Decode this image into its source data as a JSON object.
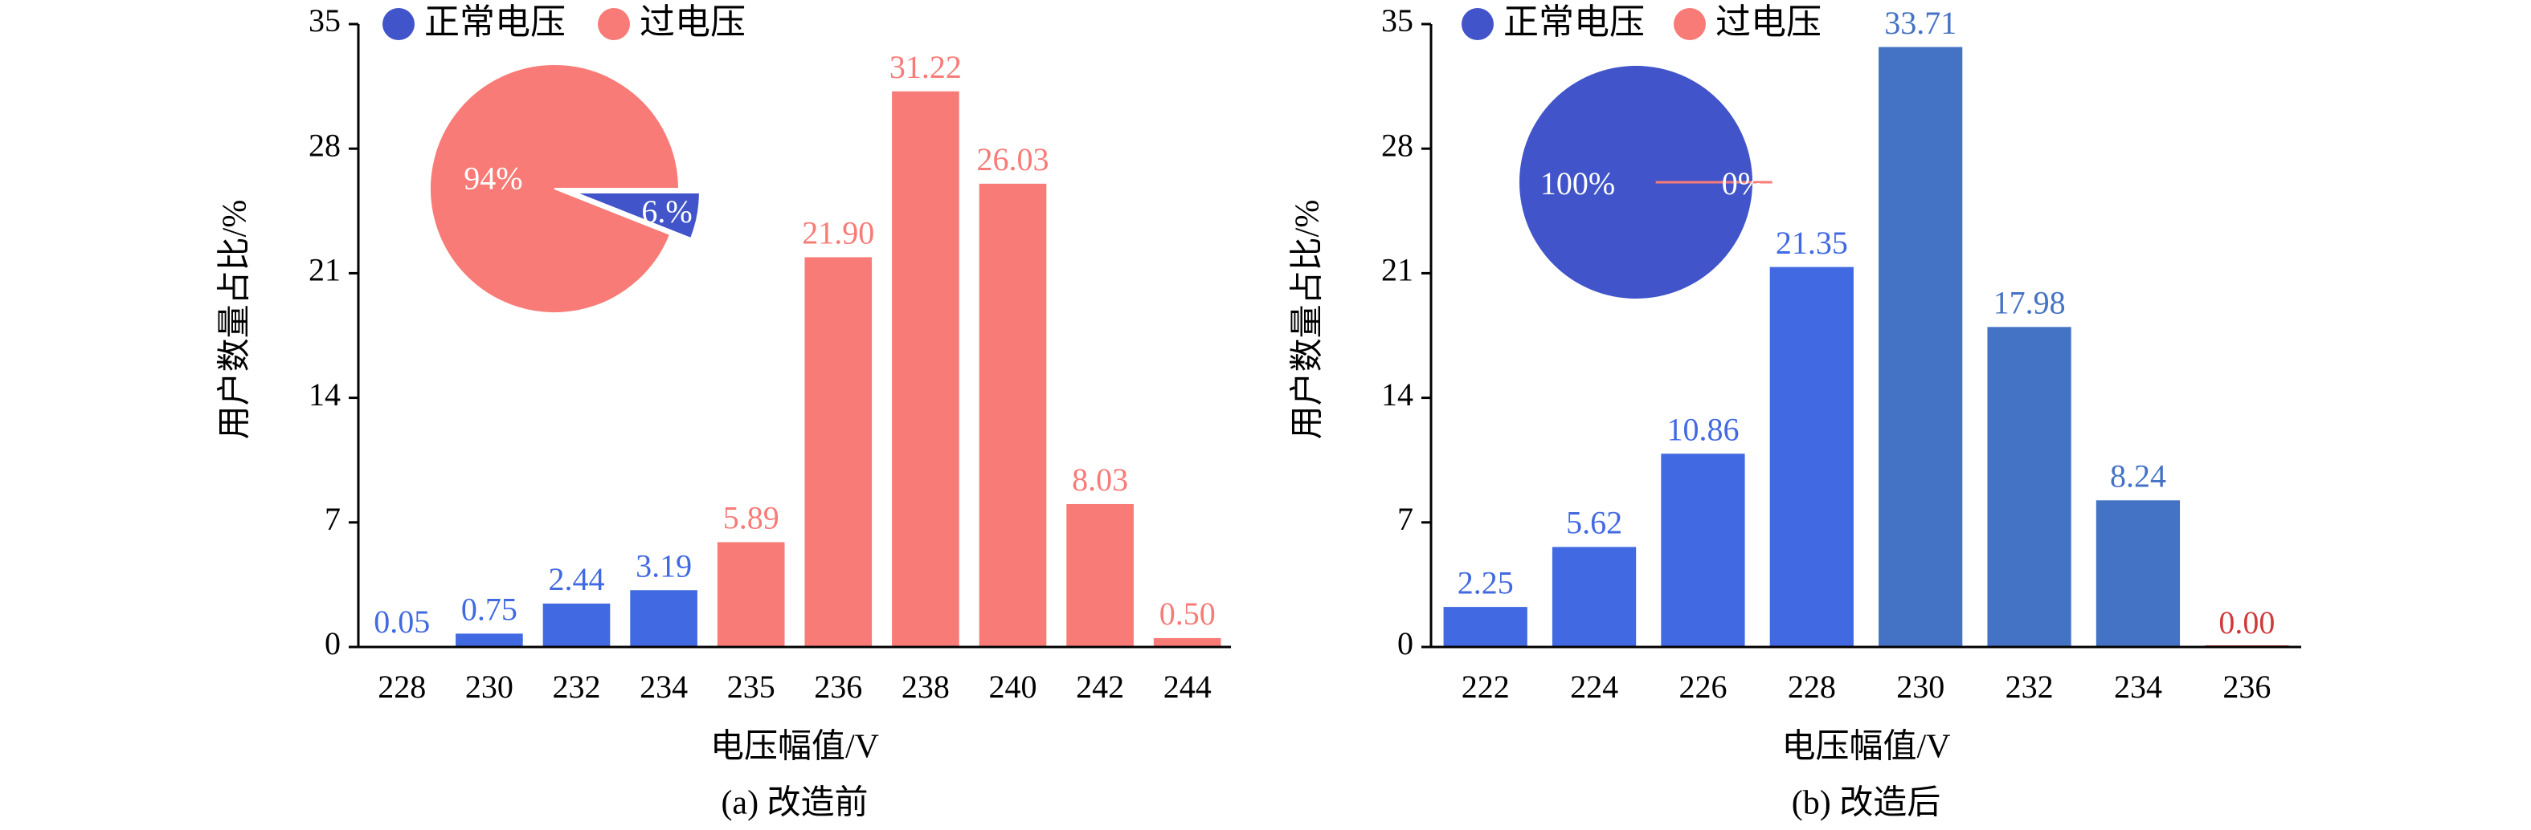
{
  "chart_data": [
    {
      "type": "bar",
      "caption": "(a) 改造前",
      "xlabel": "电压幅值/V",
      "ylabel": "用户数量占比/%",
      "categories": [
        "228",
        "230",
        "232",
        "234",
        "235",
        "236",
        "238",
        "240",
        "242",
        "244"
      ],
      "values": [
        0.05,
        0.75,
        2.44,
        3.19,
        5.89,
        21.9,
        31.22,
        26.03,
        8.03,
        0.5
      ],
      "value_labels": [
        "0.05",
        "0.75",
        "2.44",
        "3.19",
        "5.89",
        "21.90",
        "31.22",
        "26.03",
        "8.03",
        "0.50"
      ],
      "colors": [
        "#4169e1",
        "#4169e1",
        "#4169e1",
        "#4169e1",
        "#f87b77",
        "#f87b77",
        "#f87b77",
        "#f87b77",
        "#f87b77",
        "#f87b77"
      ],
      "ylim": [
        0,
        35
      ],
      "yticks": [
        0,
        7,
        14,
        21,
        28,
        35
      ],
      "legend": [
        {
          "name": "正常电压",
          "color": "#4154c9"
        },
        {
          "name": "过电压",
          "color": "#f87b77"
        }
      ],
      "pie": {
        "values": [
          94,
          6
        ],
        "value_labels": [
          "94%",
          "6.%"
        ],
        "colors": [
          "#f87b77",
          "#4154c9"
        ]
      }
    },
    {
      "type": "bar",
      "caption": "(b) 改造后",
      "xlabel": "电压幅值/V",
      "ylabel": "用户数量占比/%",
      "categories": [
        "222",
        "224",
        "226",
        "228",
        "230",
        "232",
        "234",
        "236"
      ],
      "values": [
        2.25,
        5.62,
        10.86,
        21.35,
        33.71,
        17.98,
        8.24,
        0.0
      ],
      "value_labels": [
        "2.25",
        "5.62",
        "10.86",
        "21.35",
        "33.71",
        "17.98",
        "8.24",
        "0.00"
      ],
      "colors": [
        "#4169e1",
        "#4169e1",
        "#4169e1",
        "#4169e1",
        "#4472c4",
        "#4472c4",
        "#4472c4",
        "#d03a3a"
      ],
      "ylim": [
        0,
        35
      ],
      "yticks": [
        0,
        7,
        14,
        21,
        28,
        35
      ],
      "legend": [
        {
          "name": "正常电压",
          "color": "#4154c9"
        },
        {
          "name": "过电压",
          "color": "#f87b77"
        }
      ],
      "pie": {
        "values": [
          100,
          0
        ],
        "value_labels": [
          "100%",
          "0%"
        ],
        "colors": [
          "#4154c9",
          "#f87b77"
        ]
      }
    }
  ]
}
